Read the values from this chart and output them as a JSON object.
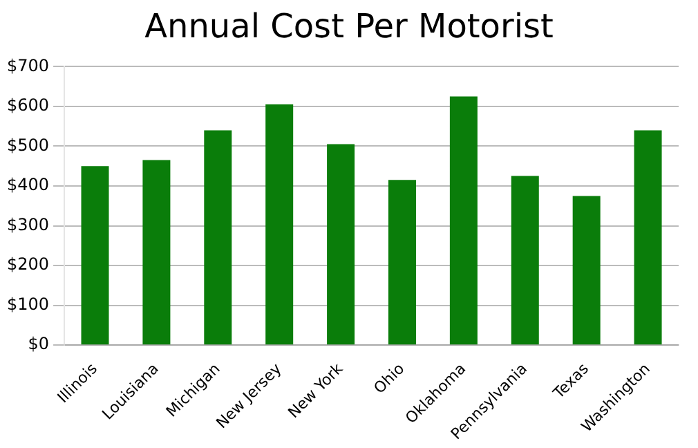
{
  "chart_data": {
    "type": "bar",
    "title": "Annual Cost Per Motorist",
    "categories": [
      "Illinois",
      "Louisiana",
      "Michigan",
      "New Jersey",
      "New York",
      "Ohio",
      "Oklahoma",
      "Pennsylvania",
      "Texas",
      "Washington"
    ],
    "values": [
      450,
      465,
      540,
      605,
      505,
      415,
      625,
      425,
      375,
      540
    ],
    "color": "#0a7d0a",
    "ylim": [
      0,
      700
    ],
    "yticks": [
      {
        "value": 0,
        "label": "$0"
      },
      {
        "value": 100,
        "label": "$100"
      },
      {
        "value": 200,
        "label": "$200"
      },
      {
        "value": 300,
        "label": "$300"
      },
      {
        "value": 400,
        "label": "$400"
      },
      {
        "value": 500,
        "label": "$500"
      },
      {
        "value": 600,
        "label": "$600"
      },
      {
        "value": 700,
        "label": "$700"
      }
    ],
    "grid": "y",
    "legend": false
  }
}
